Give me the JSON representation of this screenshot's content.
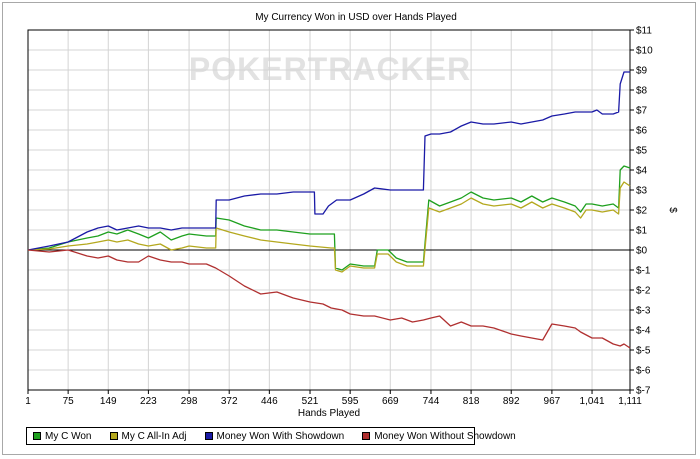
{
  "chart_data": {
    "type": "line",
    "title": "My Currency Won in USD over Hands Played",
    "watermark": "POKERTRACKER",
    "xlabel": "Hands Played",
    "ylabel": "$",
    "xlim": [
      1,
      1111
    ],
    "ylim": [
      -7,
      11
    ],
    "x_ticks": [
      {
        "value": 1,
        "label": "1"
      },
      {
        "value": 75,
        "label": "75"
      },
      {
        "value": 149,
        "label": "149"
      },
      {
        "value": 223,
        "label": "223"
      },
      {
        "value": 298,
        "label": "298"
      },
      {
        "value": 372,
        "label": "372"
      },
      {
        "value": 446,
        "label": "446"
      },
      {
        "value": 521,
        "label": "521"
      },
      {
        "value": 595,
        "label": "595"
      },
      {
        "value": 669,
        "label": "669"
      },
      {
        "value": 744,
        "label": "744"
      },
      {
        "value": 818,
        "label": "818"
      },
      {
        "value": 892,
        "label": "892"
      },
      {
        "value": 967,
        "label": "967"
      },
      {
        "value": 1041,
        "label": "1,041"
      },
      {
        "value": 1111,
        "label": "1,111"
      }
    ],
    "y_ticks": [
      {
        "value": 11,
        "label": "$11"
      },
      {
        "value": 10,
        "label": "$10"
      },
      {
        "value": 9,
        "label": "$9"
      },
      {
        "value": 8,
        "label": "$8"
      },
      {
        "value": 7,
        "label": "$7"
      },
      {
        "value": 6,
        "label": "$6"
      },
      {
        "value": 5,
        "label": "$5"
      },
      {
        "value": 4,
        "label": "$4"
      },
      {
        "value": 3,
        "label": "$3"
      },
      {
        "value": 2,
        "label": "$2"
      },
      {
        "value": 1,
        "label": "$1"
      },
      {
        "value": 0,
        "label": "$0"
      },
      {
        "value": -1,
        "label": "$-1"
      },
      {
        "value": -2,
        "label": "$-2"
      },
      {
        "value": -3,
        "label": "$-3"
      },
      {
        "value": -4,
        "label": "$-4"
      },
      {
        "value": -5,
        "label": "$-5"
      },
      {
        "value": -6,
        "label": "$-6"
      },
      {
        "value": -7,
        "label": "$-7"
      }
    ],
    "grid": true,
    "legend_position": "bottom-left",
    "series": [
      {
        "name": "My C Won",
        "color": "#1ea01e",
        "points": [
          [
            1,
            0
          ],
          [
            40,
            0.1
          ],
          [
            75,
            0.4
          ],
          [
            110,
            0.6
          ],
          [
            130,
            0.7
          ],
          [
            149,
            0.9
          ],
          [
            165,
            0.8
          ],
          [
            185,
            1.0
          ],
          [
            205,
            0.8
          ],
          [
            223,
            0.6
          ],
          [
            245,
            0.9
          ],
          [
            265,
            0.5
          ],
          [
            285,
            0.7
          ],
          [
            298,
            0.8
          ],
          [
            330,
            0.7
          ],
          [
            347,
            0.7
          ],
          [
            348,
            1.6
          ],
          [
            372,
            1.5
          ],
          [
            400,
            1.2
          ],
          [
            430,
            1.0
          ],
          [
            460,
            1.0
          ],
          [
            490,
            0.9
          ],
          [
            521,
            0.8
          ],
          [
            560,
            0.8
          ],
          [
            566,
            0.8
          ],
          [
            568,
            -0.9
          ],
          [
            580,
            -1.0
          ],
          [
            595,
            -0.7
          ],
          [
            620,
            -0.8
          ],
          [
            640,
            -0.8
          ],
          [
            645,
            0.0
          ],
          [
            665,
            0.0
          ],
          [
            680,
            -0.4
          ],
          [
            700,
            -0.6
          ],
          [
            730,
            -0.6
          ],
          [
            740,
            2.5
          ],
          [
            760,
            2.2
          ],
          [
            780,
            2.4
          ],
          [
            800,
            2.6
          ],
          [
            818,
            2.9
          ],
          [
            840,
            2.6
          ],
          [
            860,
            2.5
          ],
          [
            892,
            2.6
          ],
          [
            910,
            2.4
          ],
          [
            930,
            2.7
          ],
          [
            950,
            2.4
          ],
          [
            967,
            2.6
          ],
          [
            990,
            2.4
          ],
          [
            1010,
            2.2
          ],
          [
            1020,
            1.9
          ],
          [
            1030,
            2.3
          ],
          [
            1041,
            2.3
          ],
          [
            1060,
            2.2
          ],
          [
            1080,
            2.3
          ],
          [
            1090,
            2.1
          ],
          [
            1093,
            4.0
          ],
          [
            1100,
            4.2
          ],
          [
            1111,
            4.1
          ]
        ]
      },
      {
        "name": "My C All-In Adj",
        "color": "#b4a81e",
        "points": [
          [
            1,
            0
          ],
          [
            40,
            0.05
          ],
          [
            75,
            0.2
          ],
          [
            110,
            0.3
          ],
          [
            130,
            0.4
          ],
          [
            149,
            0.5
          ],
          [
            165,
            0.4
          ],
          [
            185,
            0.5
          ],
          [
            205,
            0.3
          ],
          [
            223,
            0.2
          ],
          [
            245,
            0.3
          ],
          [
            265,
            0.0
          ],
          [
            285,
            0.1
          ],
          [
            298,
            0.2
          ],
          [
            330,
            0.1
          ],
          [
            347,
            0.1
          ],
          [
            348,
            1.1
          ],
          [
            372,
            0.9
          ],
          [
            400,
            0.7
          ],
          [
            430,
            0.5
          ],
          [
            460,
            0.4
          ],
          [
            490,
            0.3
          ],
          [
            521,
            0.2
          ],
          [
            560,
            0.1
          ],
          [
            566,
            0.1
          ],
          [
            568,
            -1.0
          ],
          [
            580,
            -1.1
          ],
          [
            595,
            -0.8
          ],
          [
            620,
            -0.9
          ],
          [
            640,
            -0.9
          ],
          [
            645,
            -0.2
          ],
          [
            665,
            -0.2
          ],
          [
            680,
            -0.6
          ],
          [
            700,
            -0.8
          ],
          [
            730,
            -0.8
          ],
          [
            740,
            2.1
          ],
          [
            760,
            1.9
          ],
          [
            780,
            2.1
          ],
          [
            800,
            2.3
          ],
          [
            818,
            2.6
          ],
          [
            840,
            2.3
          ],
          [
            860,
            2.2
          ],
          [
            892,
            2.3
          ],
          [
            910,
            2.1
          ],
          [
            930,
            2.4
          ],
          [
            950,
            2.1
          ],
          [
            967,
            2.3
          ],
          [
            990,
            2.1
          ],
          [
            1010,
            1.9
          ],
          [
            1020,
            1.6
          ],
          [
            1030,
            2.0
          ],
          [
            1041,
            2.0
          ],
          [
            1060,
            1.9
          ],
          [
            1080,
            2.0
          ],
          [
            1090,
            1.8
          ],
          [
            1093,
            3.1
          ],
          [
            1100,
            3.4
          ],
          [
            1111,
            3.2
          ]
        ]
      },
      {
        "name": "Money Won With Showdown",
        "color": "#1a1aa6",
        "points": [
          [
            1,
            0
          ],
          [
            40,
            0.2
          ],
          [
            75,
            0.4
          ],
          [
            110,
            0.9
          ],
          [
            130,
            1.1
          ],
          [
            149,
            1.2
          ],
          [
            165,
            1.0
          ],
          [
            185,
            1.1
          ],
          [
            205,
            1.2
          ],
          [
            223,
            1.1
          ],
          [
            245,
            1.1
          ],
          [
            265,
            1.0
          ],
          [
            285,
            1.1
          ],
          [
            298,
            1.1
          ],
          [
            330,
            1.1
          ],
          [
            347,
            1.1
          ],
          [
            348,
            2.5
          ],
          [
            372,
            2.5
          ],
          [
            400,
            2.7
          ],
          [
            430,
            2.8
          ],
          [
            460,
            2.8
          ],
          [
            490,
            2.9
          ],
          [
            521,
            2.9
          ],
          [
            529,
            2.9
          ],
          [
            530,
            1.8
          ],
          [
            545,
            1.8
          ],
          [
            555,
            2.2
          ],
          [
            570,
            2.5
          ],
          [
            595,
            2.5
          ],
          [
            620,
            2.8
          ],
          [
            640,
            3.1
          ],
          [
            669,
            3.0
          ],
          [
            690,
            3.0
          ],
          [
            730,
            3.0
          ],
          [
            733,
            5.7
          ],
          [
            744,
            5.8
          ],
          [
            760,
            5.8
          ],
          [
            780,
            5.9
          ],
          [
            800,
            6.2
          ],
          [
            818,
            6.4
          ],
          [
            840,
            6.3
          ],
          [
            860,
            6.3
          ],
          [
            892,
            6.4
          ],
          [
            910,
            6.3
          ],
          [
            930,
            6.4
          ],
          [
            950,
            6.5
          ],
          [
            967,
            6.7
          ],
          [
            990,
            6.8
          ],
          [
            1010,
            6.9
          ],
          [
            1041,
            6.9
          ],
          [
            1050,
            7.0
          ],
          [
            1060,
            6.8
          ],
          [
            1080,
            6.8
          ],
          [
            1090,
            6.9
          ],
          [
            1093,
            8.3
          ],
          [
            1100,
            8.9
          ],
          [
            1111,
            8.9
          ]
        ]
      },
      {
        "name": "Money Won Without Showdown",
        "color": "#b03030",
        "points": [
          [
            1,
            0
          ],
          [
            40,
            -0.1
          ],
          [
            75,
            0.0
          ],
          [
            110,
            -0.3
          ],
          [
            130,
            -0.4
          ],
          [
            149,
            -0.3
          ],
          [
            165,
            -0.5
          ],
          [
            185,
            -0.6
          ],
          [
            205,
            -0.6
          ],
          [
            223,
            -0.3
          ],
          [
            245,
            -0.5
          ],
          [
            265,
            -0.6
          ],
          [
            285,
            -0.6
          ],
          [
            298,
            -0.7
          ],
          [
            330,
            -0.7
          ],
          [
            347,
            -0.9
          ],
          [
            372,
            -1.3
          ],
          [
            400,
            -1.8
          ],
          [
            430,
            -2.2
          ],
          [
            460,
            -2.1
          ],
          [
            490,
            -2.4
          ],
          [
            521,
            -2.6
          ],
          [
            545,
            -2.7
          ],
          [
            560,
            -2.9
          ],
          [
            580,
            -3.0
          ],
          [
            595,
            -3.2
          ],
          [
            620,
            -3.3
          ],
          [
            640,
            -3.3
          ],
          [
            669,
            -3.5
          ],
          [
            690,
            -3.4
          ],
          [
            710,
            -3.6
          ],
          [
            730,
            -3.5
          ],
          [
            744,
            -3.4
          ],
          [
            760,
            -3.3
          ],
          [
            780,
            -3.8
          ],
          [
            800,
            -3.6
          ],
          [
            818,
            -3.8
          ],
          [
            840,
            -3.8
          ],
          [
            860,
            -3.9
          ],
          [
            892,
            -4.2
          ],
          [
            910,
            -4.3
          ],
          [
            930,
            -4.4
          ],
          [
            950,
            -4.5
          ],
          [
            967,
            -3.7
          ],
          [
            990,
            -3.8
          ],
          [
            1010,
            -3.9
          ],
          [
            1020,
            -4.1
          ],
          [
            1041,
            -4.4
          ],
          [
            1060,
            -4.4
          ],
          [
            1080,
            -4.7
          ],
          [
            1093,
            -4.8
          ],
          [
            1100,
            -4.7
          ],
          [
            1111,
            -4.9
          ]
        ]
      }
    ]
  }
}
